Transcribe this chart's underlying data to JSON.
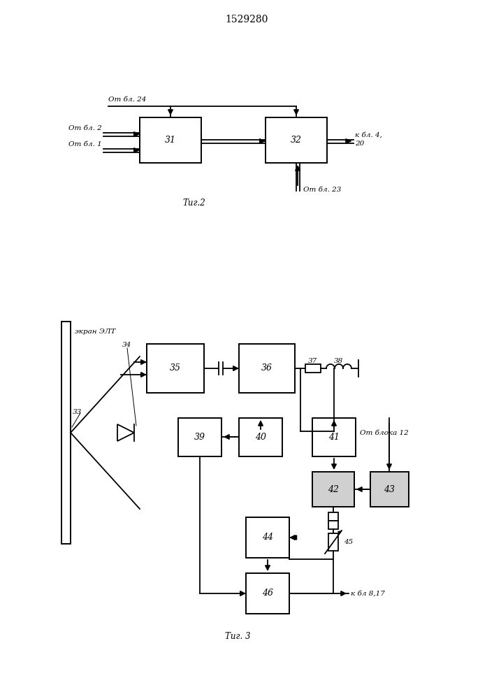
{
  "title": "1529280",
  "bg": "#ffffff",
  "fig2_caption": "Τиг.2",
  "fig3_caption": "Τиг. 3",
  "label_otbl24": "От бл. 24",
  "label_otbl2": "От бл. 2",
  "label_otbl1": "От бл. 1",
  "label_kbl": "к бл. 4,",
  "label_20": "20",
  "label_otbl23": "От бл. 23",
  "label_screen": "экран ЭЛТ",
  "label_otbloka12": "От блока 12",
  "label_kbl817": "к бл 8,17"
}
